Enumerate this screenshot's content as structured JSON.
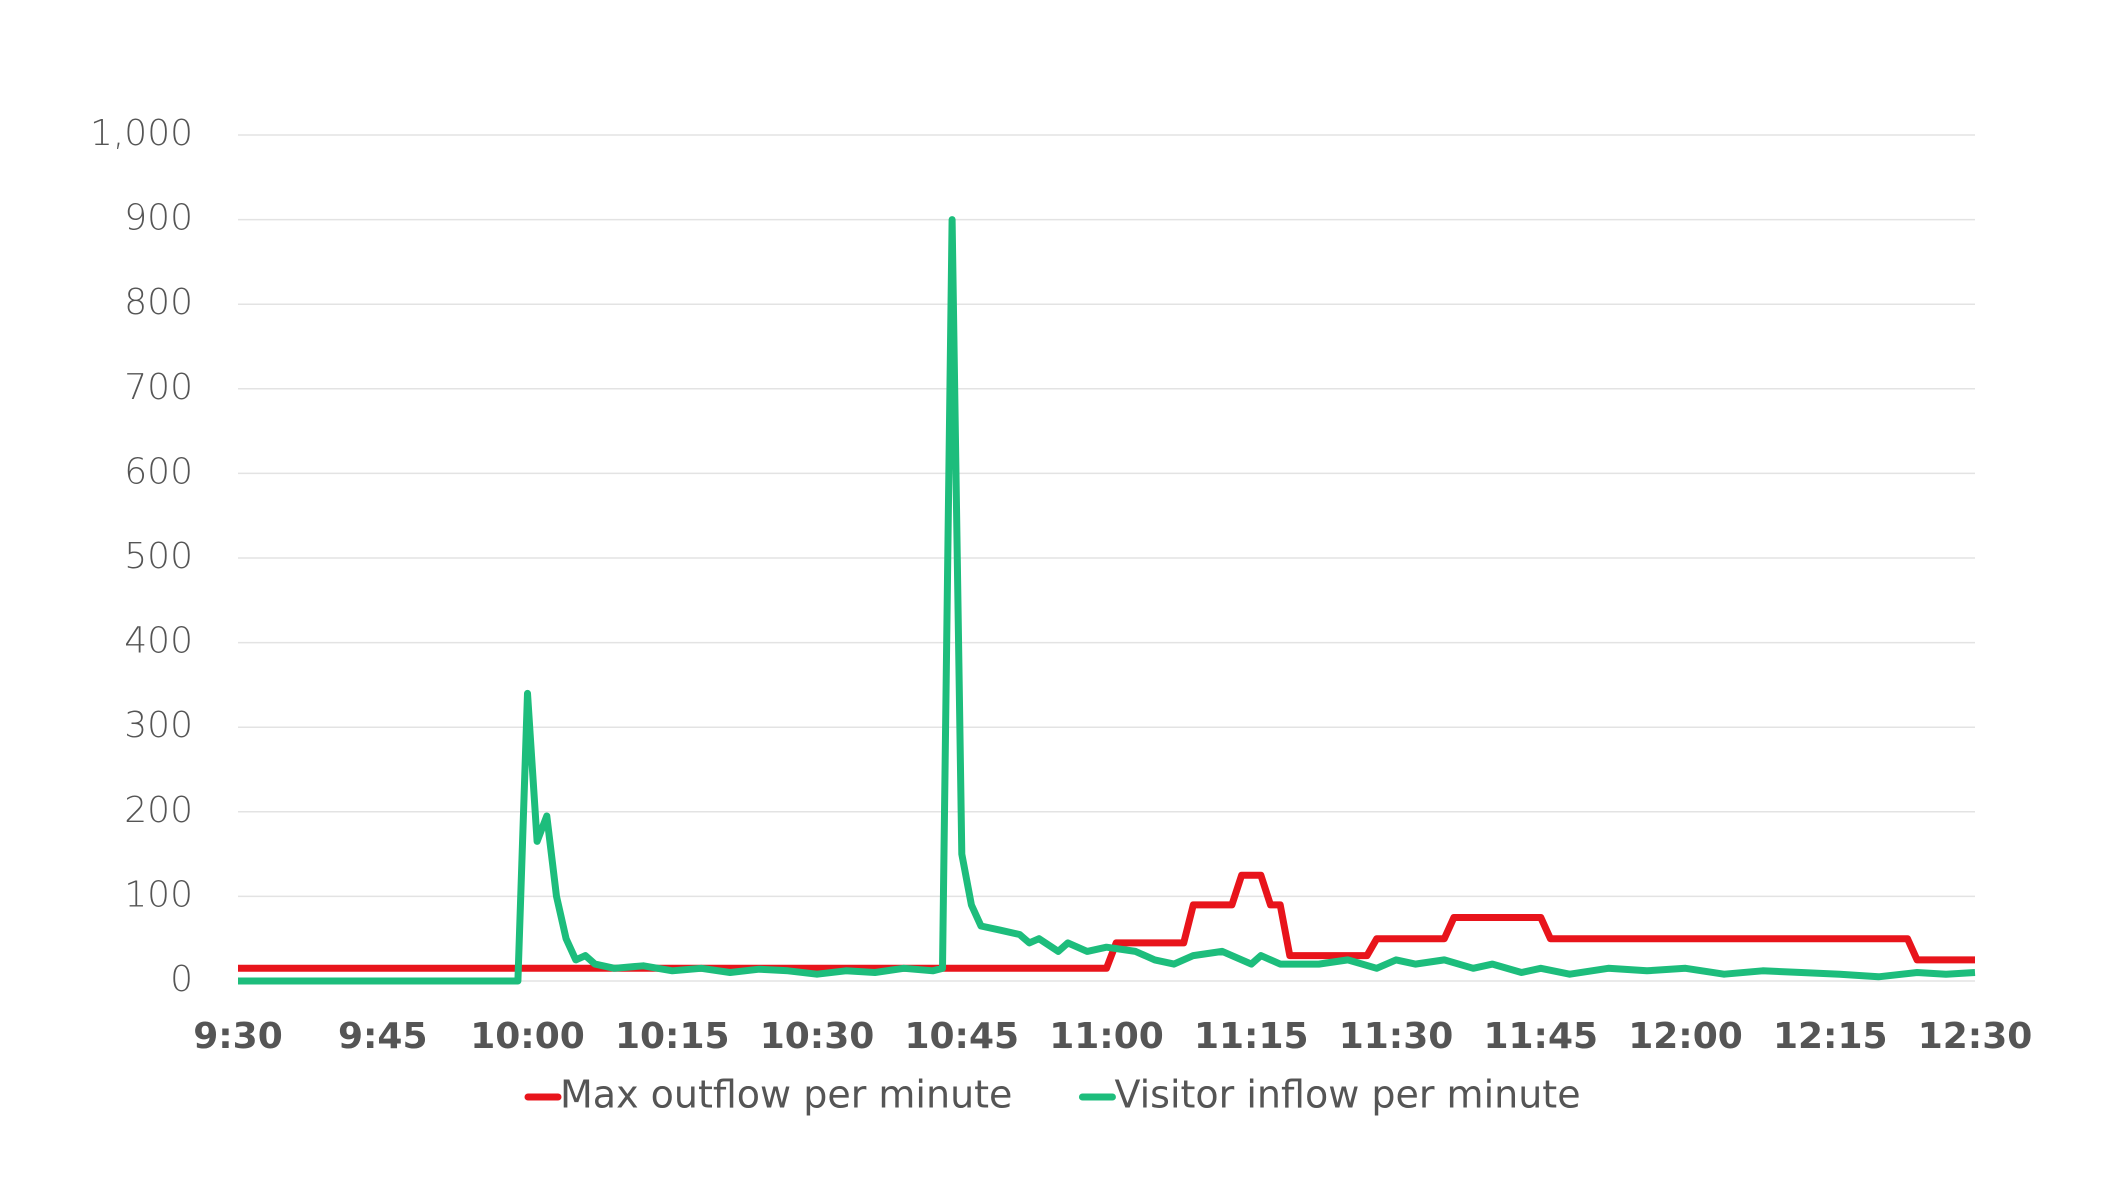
{
  "chart_data": {
    "type": "line",
    "xlim": [
      "9:30",
      "12:30"
    ],
    "xticks": [
      "9:30",
      "9:45",
      "10:00",
      "10:15",
      "10:30",
      "10:45",
      "11:00",
      "11:15",
      "11:30",
      "11:45",
      "12:00",
      "12:15",
      "12:30"
    ],
    "ylim": [
      0,
      1000
    ],
    "yticks": [
      0,
      100,
      200,
      300,
      400,
      500,
      600,
      700,
      800,
      900,
      {
        "value": 1000,
        "label": "1,000"
      }
    ],
    "grid": true,
    "legend": "bottom",
    "series": [
      {
        "name": "Max outflow per minute",
        "color": "#e8141b",
        "x": [
          "9:30",
          "11:00",
          "11:01",
          "11:08",
          "11:09",
          "11:13",
          "11:14",
          "11:16",
          "11:17",
          "11:18",
          "11:19",
          "11:27",
          "11:28",
          "11:35",
          "11:36",
          "11:45",
          "11:46",
          "12:23",
          "12:24",
          "12:30"
        ],
        "values": [
          15,
          15,
          45,
          45,
          90,
          90,
          125,
          125,
          90,
          90,
          30,
          30,
          50,
          50,
          75,
          75,
          50,
          50,
          25,
          25
        ]
      },
      {
        "name": "Visitor inflow per minute",
        "color": "#1dbd7c",
        "x": [
          "9:30",
          "9:59",
          "10:00",
          "10:01",
          "10:02",
          "10:03",
          "10:04",
          "10:05",
          "10:06",
          "10:07",
          "10:09",
          "10:12",
          "10:15",
          "10:18",
          "10:21",
          "10:24",
          "10:27",
          "10:30",
          "10:33",
          "10:36",
          "10:39",
          "10:42",
          "10:43",
          "10:44",
          "10:45",
          "10:46",
          "10:47",
          "10:49",
          "10:51",
          "10:52",
          "10:53",
          "10:55",
          "10:56",
          "10:58",
          "11:00",
          "11:03",
          "11:05",
          "11:07",
          "11:09",
          "11:12",
          "11:15",
          "11:16",
          "11:18",
          "11:22",
          "11:25",
          "11:28",
          "11:30",
          "11:32",
          "11:35",
          "11:38",
          "11:40",
          "11:43",
          "11:45",
          "11:48",
          "11:52",
          "11:56",
          "12:00",
          "12:04",
          "12:08",
          "12:12",
          "12:16",
          "12:20",
          "12:24",
          "12:27",
          "12:30"
        ],
        "values": [
          0,
          0,
          340,
          165,
          195,
          100,
          50,
          25,
          30,
          20,
          15,
          18,
          12,
          15,
          10,
          14,
          12,
          8,
          12,
          10,
          15,
          12,
          15,
          900,
          150,
          90,
          65,
          60,
          55,
          45,
          50,
          35,
          45,
          35,
          40,
          35,
          25,
          20,
          30,
          35,
          20,
          30,
          20,
          20,
          25,
          15,
          25,
          20,
          25,
          15,
          20,
          10,
          15,
          8,
          15,
          12,
          15,
          8,
          12,
          10,
          8,
          5,
          10,
          8,
          10
        ]
      }
    ]
  }
}
